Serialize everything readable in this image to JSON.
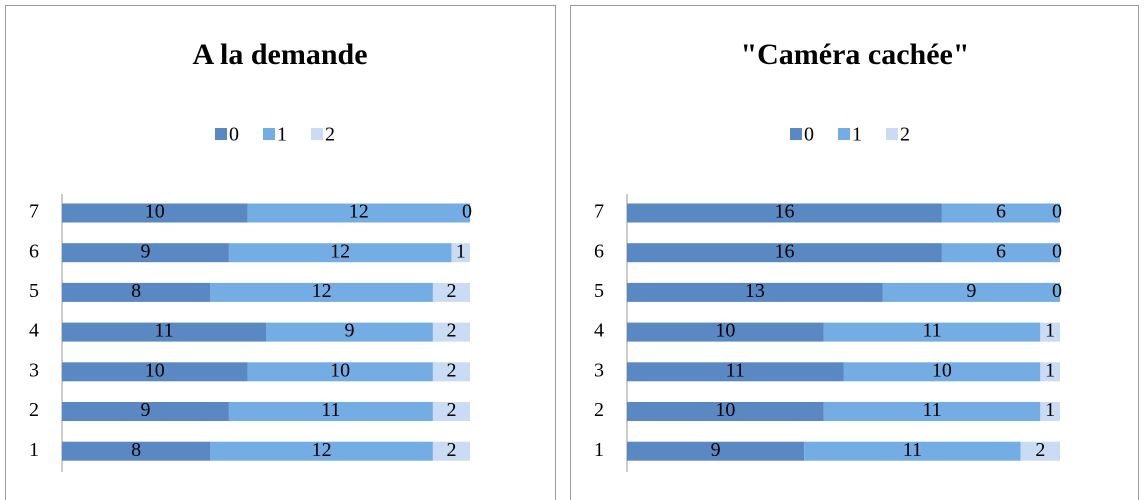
{
  "chart_data": [
    {
      "type": "bar",
      "orientation": "horizontal",
      "stacked": true,
      "title": "A la demande",
      "categories": [
        "1",
        "2",
        "3",
        "4",
        "5",
        "6",
        "7"
      ],
      "series": [
        {
          "name": "0",
          "color": "#5a88c2",
          "values": [
            8,
            9,
            10,
            11,
            8,
            9,
            10
          ]
        },
        {
          "name": "1",
          "color": "#74ade3",
          "values": [
            12,
            11,
            10,
            9,
            12,
            12,
            12
          ]
        },
        {
          "name": "2",
          "color": "#c9dcf3",
          "values": [
            2,
            2,
            2,
            2,
            2,
            1,
            0
          ]
        }
      ],
      "xlim": [
        0,
        22
      ],
      "legend": "top"
    },
    {
      "type": "bar",
      "orientation": "horizontal",
      "stacked": true,
      "title": "\"Caméra cachée\"",
      "categories": [
        "1",
        "2",
        "3",
        "4",
        "5",
        "6",
        "7"
      ],
      "series": [
        {
          "name": "0",
          "color": "#5a88c2",
          "values": [
            9,
            10,
            11,
            10,
            13,
            16,
            16
          ]
        },
        {
          "name": "1",
          "color": "#74ade3",
          "values": [
            11,
            11,
            10,
            11,
            9,
            6,
            6
          ]
        },
        {
          "name": "2",
          "color": "#c9dcf3",
          "values": [
            2,
            1,
            1,
            1,
            0,
            0,
            0
          ]
        }
      ],
      "xlim": [
        0,
        22
      ],
      "legend": "top"
    }
  ]
}
